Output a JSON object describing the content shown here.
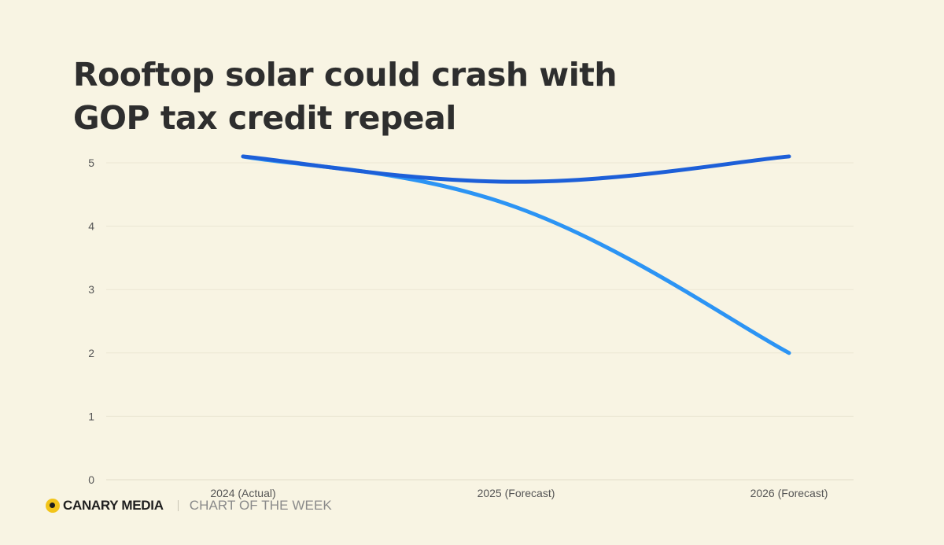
{
  "title": "Rooftop solar could crash with GOP tax credit repeal",
  "footer": {
    "brand": "CANARY MEDIA",
    "tagline": "CHART OF THE WEEK"
  },
  "chart_data": {
    "type": "line",
    "title": "Rooftop solar could crash with GOP tax credit repeal",
    "xlabel": "",
    "ylabel": "",
    "ylim": [
      0,
      5
    ],
    "yticks": [
      0,
      1,
      2,
      3,
      4,
      5
    ],
    "grid": true,
    "categories": [
      "2024 (Actual)",
      "2025 (Forecast)",
      "2026 (Forecast)"
    ],
    "series": [
      {
        "name": "",
        "color": "#1d5fd8",
        "values": [
          5.1,
          4.7,
          5.1
        ]
      },
      {
        "name": "",
        "color": "#2c94f4",
        "values": [
          5.1,
          4.3,
          2.0
        ]
      }
    ]
  }
}
